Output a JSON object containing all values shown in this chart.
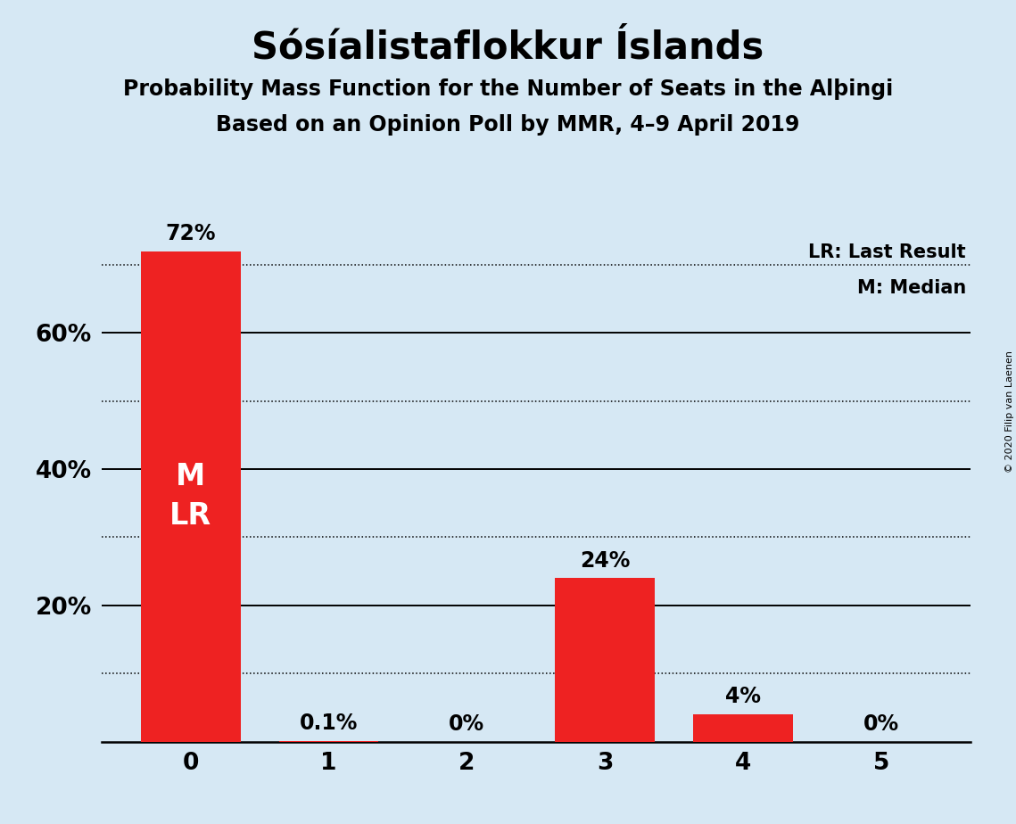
{
  "title": "Sósíalistaflokkur Íslands",
  "subtitle1": "Probability Mass Function for the Number of Seats in the Alþingi",
  "subtitle2": "Based on an Opinion Poll by MMR, 4–9 April 2019",
  "copyright": "© 2020 Filip van Laenen",
  "categories": [
    0,
    1,
    2,
    3,
    4,
    5
  ],
  "values": [
    72.0,
    0.1,
    0.0,
    24.0,
    4.0,
    0.0
  ],
  "bar_labels": [
    "72%",
    "0.1%",
    "0%",
    "24%",
    "4%",
    "0%"
  ],
  "bar_color": "#ee2222",
  "background_color": "#d6e8f4",
  "ylim": [
    0,
    75
  ],
  "yticks": [
    20,
    40,
    60
  ],
  "ytick_labels": [
    "20%",
    "40%",
    "60%"
  ],
  "solid_gridlines": [
    20,
    40,
    60
  ],
  "dotted_gridlines": [
    10,
    30,
    50,
    70
  ],
  "legend_lr": "LR: Last Result",
  "legend_m": "M: Median",
  "title_fontsize": 30,
  "subtitle_fontsize": 17,
  "bar_label_fontsize": 17,
  "axis_tick_fontsize": 19,
  "legend_fontsize": 15,
  "inner_label_fontsize": 24
}
